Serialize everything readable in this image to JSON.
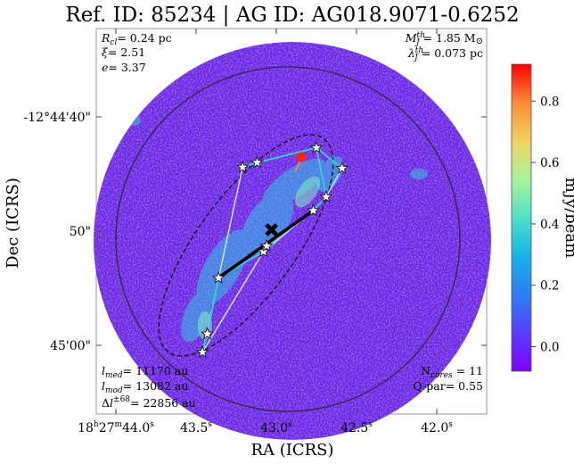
{
  "chart_data": {
    "type": "heatmap",
    "title": "Ref. ID: 85234 | AG ID: AG018.9071-0.6252",
    "xlabel": "RA (ICRS)",
    "ylabel": "Dec (ICRS)",
    "colorbar": {
      "label": "mJy/beam",
      "ticks": [
        "0.0",
        "0.2",
        "0.4",
        "0.6",
        "0.8"
      ],
      "range": [
        -0.08,
        0.92
      ],
      "colormap": "rainbow"
    },
    "x_ticks": {
      "labels": [
        "18h27m44.0s",
        "43.5s",
        "43.0s",
        "42.5s",
        "42.0s"
      ],
      "pieces": [
        {
          "base": "18",
          "sup": "h",
          "mid": "27",
          "sup2": "m",
          "main": "44.0",
          "sup3": "s"
        },
        {
          "main": "43.5",
          "sup": "s"
        },
        {
          "main": "43.0",
          "sup": "s"
        },
        {
          "main": "42.5",
          "sup": "s"
        },
        {
          "main": "42.0",
          "sup": "s"
        }
      ]
    },
    "y_ticks": [
      "-12°44'40\"",
      "50\"",
      "45'00\""
    ],
    "annotations": {
      "top_left": [
        "R_cl= 0.24 pc",
        "ξ= 2.51",
        "e= 3.37"
      ],
      "top_right": [
        "M_J^th= 1.85 M⊙",
        "λ_J^th= 0.073 pc"
      ],
      "bottom_left": [
        "l_med= 11170 au",
        "l_mod= 13082 au",
        "Δl^±68= 22856 au"
      ],
      "bottom_right": [
        "N_cores = 11",
        "Q-par= 0.55"
      ]
    },
    "cores": [
      {
        "ra": "18h27m43.46s",
        "dec": "-12°45'00.6\""
      },
      {
        "ra": "18h27m43.43s",
        "dec": "-12°44'59.0\""
      },
      {
        "ra": "18h27m43.36s",
        "dec": "-12°44'54.1\""
      },
      {
        "ra": "18h27m43.08s",
        "dec": "-12°44'51.8\""
      },
      {
        "ra": "18h27m43.06s",
        "dec": "-12°44'51.3\""
      },
      {
        "ra": "18h27m43.21s",
        "dec": "-12°44'44.4\""
      },
      {
        "ra": "18h27m43.12s",
        "dec": "-12°44'44.0\""
      },
      {
        "ra": "18h27m42.77s",
        "dec": "-12°44'48.2\""
      },
      {
        "ra": "18h27m42.69s",
        "dec": "-12°44'47.0\""
      },
      {
        "ra": "18h27m42.75s",
        "dec": "-12°44'42.7\""
      },
      {
        "ra": "18h27m42.59s",
        "dec": "-12°44'44.5\""
      }
    ],
    "mst_edges": [
      [
        0,
        1
      ],
      [
        1,
        2
      ],
      [
        2,
        3
      ],
      [
        3,
        4
      ],
      [
        4,
        7
      ],
      [
        7,
        8
      ],
      [
        8,
        9
      ],
      [
        9,
        10
      ],
      [
        5,
        6
      ],
      [
        6,
        9
      ]
    ],
    "hull_edges": [
      [
        0,
        5
      ],
      [
        5,
        6
      ],
      [
        6,
        9
      ],
      [
        9,
        10
      ],
      [
        10,
        8
      ],
      [
        8,
        7
      ],
      [
        7,
        3
      ],
      [
        3,
        0
      ]
    ],
    "long_axis": {
      "from": 2,
      "to": 7
    },
    "centroid": {
      "ra": "18h27m43.03s",
      "dec": "-12°44'49.9\""
    },
    "peak": {
      "ra": "18h27m42.74s",
      "dec": "-12°44'42.6\"",
      "value_mJy": 0.9
    },
    "grid": false
  }
}
